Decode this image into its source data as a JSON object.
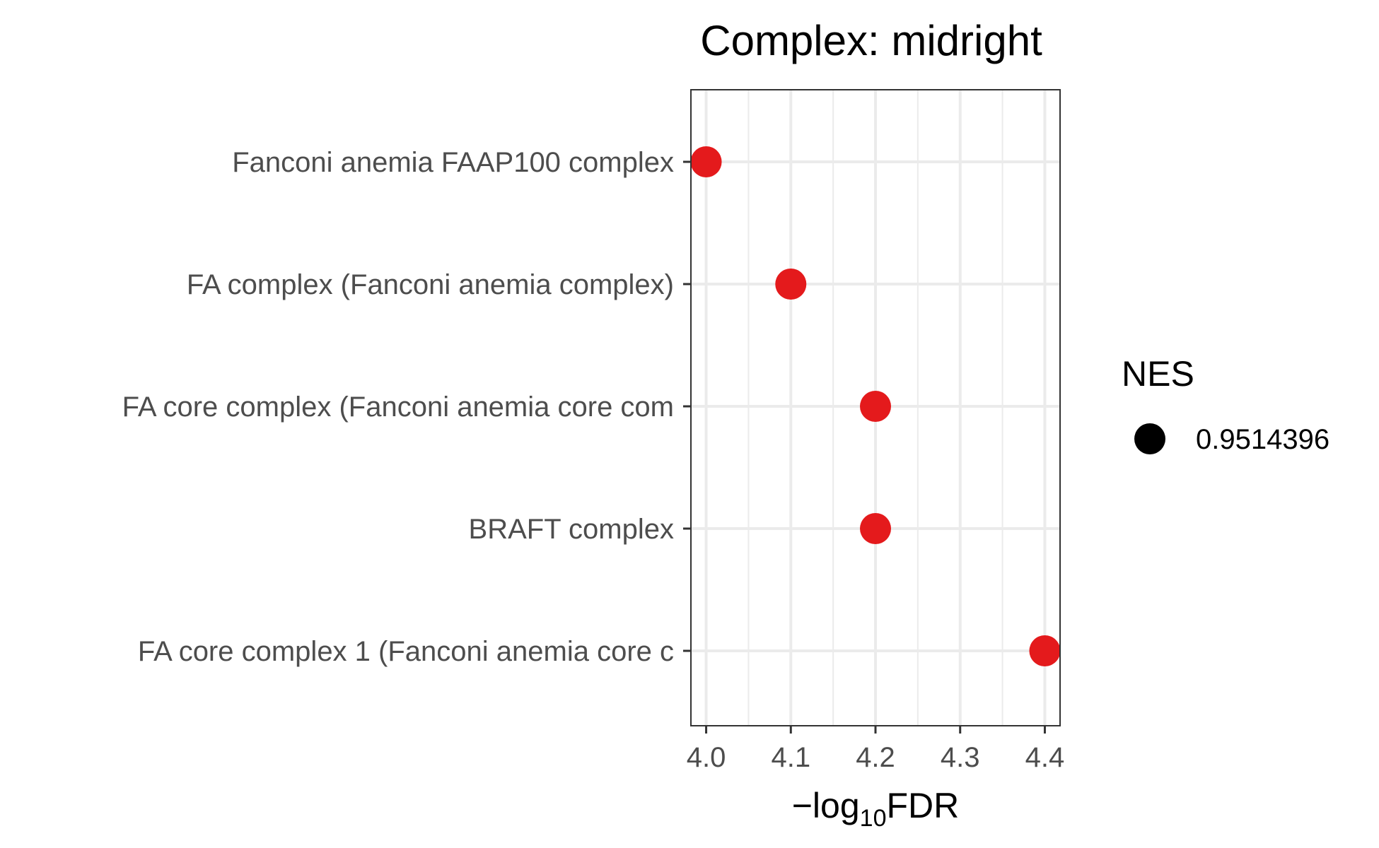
{
  "chart_data": {
    "type": "scatter",
    "title": "Complex: midright",
    "xlabel": {
      "prefix": "−log",
      "subscript": "10",
      "suffix": "FDR"
    },
    "x_ticks": [
      4.0,
      4.1,
      4.2,
      4.3,
      4.4
    ],
    "x_tick_labels": [
      "4.0",
      "4.1",
      "4.2",
      "4.3",
      "4.4"
    ],
    "xlim": [
      3.982,
      4.418
    ],
    "categories": [
      "Fanconi anemia FAAP100 complex",
      "FA complex (Fanconi anemia complex)",
      "FA core complex (Fanconi anemia core com",
      "BRAFT complex",
      "FA core complex 1 (Fanconi anemia core c"
    ],
    "points": [
      {
        "category": "Fanconi anemia FAAP100 complex",
        "x": 4.0
      },
      {
        "category": "FA complex (Fanconi anemia complex)",
        "x": 4.1
      },
      {
        "category": "FA core complex (Fanconi anemia core com",
        "x": 4.2
      },
      {
        "category": "BRAFT complex",
        "x": 4.2
      },
      {
        "category": "FA core complex 1 (Fanconi anemia core c",
        "x": 4.4
      }
    ],
    "point_color": "#e41a1c",
    "grid": true,
    "legend": {
      "title": "NES",
      "position": "right",
      "entries": [
        {
          "label": "0.9514396",
          "color": "#000000"
        }
      ]
    }
  }
}
